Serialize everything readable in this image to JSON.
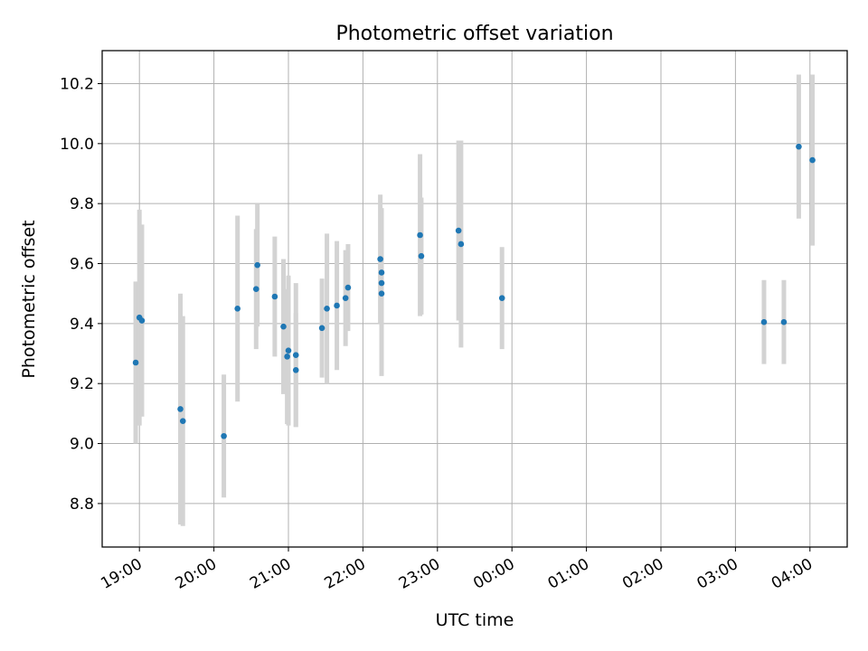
{
  "chart_data": {
    "type": "scatter",
    "title": "Photometric offset variation",
    "xlabel": "UTC time",
    "ylabel": "Photometric offset",
    "x_axis_type": "time",
    "xlim": [
      "18:30",
      "04:30"
    ],
    "ylim": [
      8.655,
      10.31
    ],
    "x_ticks": [
      "19:00",
      "20:00",
      "21:00",
      "22:00",
      "23:00",
      "00:00",
      "01:00",
      "02:00",
      "03:00",
      "04:00"
    ],
    "y_ticks": [
      8.8,
      9.0,
      9.2,
      9.4,
      9.6,
      9.8,
      10.0,
      10.2
    ],
    "y_tick_labels": [
      "8.8",
      "9.0",
      "9.2",
      "9.4",
      "9.6",
      "9.8",
      "10.0",
      "10.2"
    ],
    "grid": true,
    "x_tick_rotation": "30 degrees",
    "point_color": "#1f77b4",
    "errorbar_color": "#d3d3d3",
    "series": [
      {
        "points": [
          {
            "x": "18:57",
            "y": 9.27,
            "yerr": 0.27
          },
          {
            "x": "19:00",
            "y": 9.42,
            "yerr": 0.36
          },
          {
            "x": "19:02",
            "y": 9.41,
            "yerr": 0.32
          },
          {
            "x": "19:33",
            "y": 9.115,
            "yerr": 0.385
          },
          {
            "x": "19:35",
            "y": 9.075,
            "yerr": 0.35
          },
          {
            "x": "20:08",
            "y": 9.025,
            "yerr": 0.205
          },
          {
            "x": "20:19",
            "y": 9.45,
            "yerr": 0.31
          },
          {
            "x": "20:34",
            "y": 9.515,
            "yerr": 0.2
          },
          {
            "x": "20:35",
            "y": 9.595,
            "yerr": 0.205
          },
          {
            "x": "20:49",
            "y": 9.49,
            "yerr": 0.2
          },
          {
            "x": "20:56",
            "y": 9.39,
            "yerr": 0.225
          },
          {
            "x": "20:59",
            "y": 9.29,
            "yerr": 0.225
          },
          {
            "x": "21:00",
            "y": 9.31,
            "yerr": 0.25
          },
          {
            "x": "21:06",
            "y": 9.295,
            "yerr": 0.24
          },
          {
            "x": "21:06",
            "y": 9.245,
            "yerr": 0.19
          },
          {
            "x": "21:27",
            "y": 9.385,
            "yerr": 0.165
          },
          {
            "x": "21:31",
            "y": 9.45,
            "yerr": 0.25
          },
          {
            "x": "21:39",
            "y": 9.46,
            "yerr": 0.215
          },
          {
            "x": "21:46",
            "y": 9.485,
            "yerr": 0.16
          },
          {
            "x": "21:48",
            "y": 9.52,
            "yerr": 0.145
          },
          {
            "x": "22:14",
            "y": 9.615,
            "yerr": 0.215
          },
          {
            "x": "22:15",
            "y": 9.57,
            "yerr": 0.215
          },
          {
            "x": "22:15",
            "y": 9.535,
            "yerr": 0.18
          },
          {
            "x": "22:15",
            "y": 9.5,
            "yerr": 0.275
          },
          {
            "x": "22:46",
            "y": 9.695,
            "yerr": 0.27
          },
          {
            "x": "22:47",
            "y": 9.625,
            "yerr": 0.195
          },
          {
            "x": "23:17",
            "y": 9.71,
            "yerr": 0.3
          },
          {
            "x": "23:19",
            "y": 9.665,
            "yerr": 0.345
          },
          {
            "x": "23:52",
            "y": 9.485,
            "yerr": 0.17
          },
          {
            "x": "03:23",
            "y": 9.405,
            "yerr": 0.14
          },
          {
            "x": "03:39",
            "y": 9.405,
            "yerr": 0.14
          },
          {
            "x": "03:51",
            "y": 9.99,
            "yerr": 0.24
          },
          {
            "x": "04:02",
            "y": 9.945,
            "yerr": 0.285
          }
        ]
      }
    ]
  }
}
